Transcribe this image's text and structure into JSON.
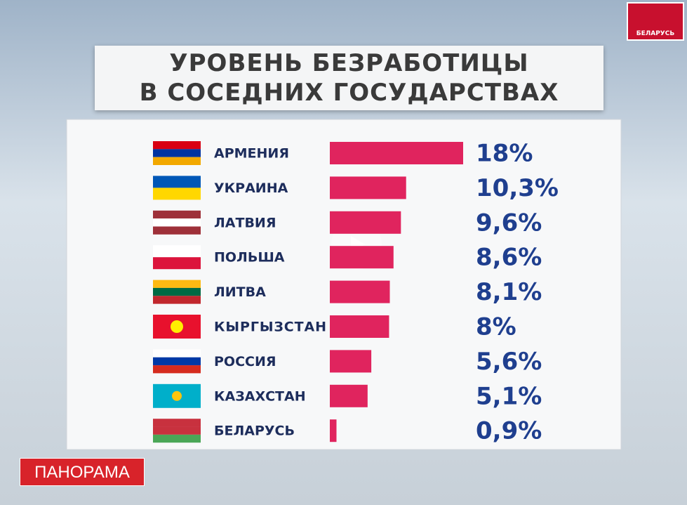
{
  "chart_data": {
    "type": "bar",
    "orientation": "horizontal",
    "title": "УРОВЕНЬ БЕЗРАБОТИЦЫ\nВ СОСЕДНИХ ГОСУДАРСТВАХ",
    "categories": [
      "АРМЕНИЯ",
      "УКРАИНА",
      "ЛАТВИЯ",
      "ПОЛЬША",
      "ЛИТВА",
      "КЫРГЫЗСТАН",
      "РОССИЯ",
      "КАЗАХСТАН",
      "БЕЛАРУСЬ"
    ],
    "values": [
      18,
      10.3,
      9.6,
      8.6,
      8.1,
      8,
      5.6,
      5.1,
      0.9
    ],
    "value_labels": [
      "18%",
      "10,3%",
      "9,6%",
      "8,6%",
      "8,1%",
      "8%",
      "5,6%",
      "5,1%",
      "0,9%"
    ],
    "color": "#e0245e"
  },
  "channel_logo": "БЕЛАРУСЬ",
  "program": "ПАНОРАМА"
}
